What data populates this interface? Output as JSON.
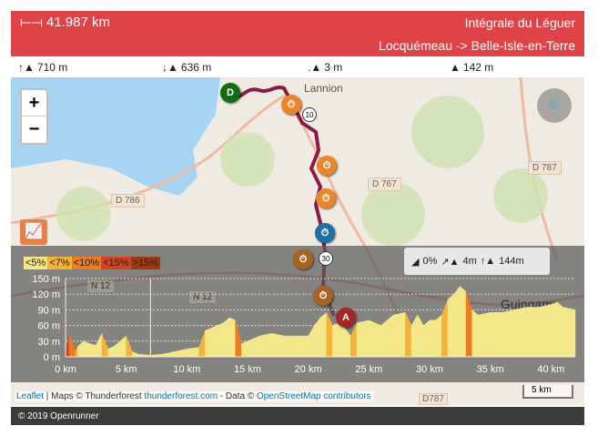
{
  "header": {
    "distance": "41.987 km",
    "title": "Intégrale du Léguer",
    "route": "Locquémeau -> Belle-Isle-en-Terre",
    "distance_icon": "ruler-icon"
  },
  "stats": {
    "ascent": "710 m",
    "descent": "636 m",
    "min_alt": "3 m",
    "max_alt": "142 m"
  },
  "map": {
    "zoom_in": "+",
    "zoom_out": "−",
    "roads": [
      "D 786",
      "D 767",
      "D 787",
      "N 12",
      "N 12",
      "D787"
    ],
    "town": "Lannion",
    "town2": "Guingamp",
    "markers": {
      "start": "D",
      "end": "A",
      "km10": "10",
      "km30": "30"
    },
    "attribution": {
      "leaflet": "Leaflet",
      "maps": " | Maps © Thunderforest ",
      "tf": "thunderforest.com",
      "data": " - Data © ",
      "osm": "OpenStreetMap contributors"
    },
    "scale": "5 km"
  },
  "elevation": {
    "legend": [
      {
        "label": "<5%",
        "color": "#f2e88a"
      },
      {
        "label": "<7%",
        "color": "#f3b23a"
      },
      {
        "label": "<10%",
        "color": "#ec7b22"
      },
      {
        "label": "<15%",
        "color": "#d9401e"
      },
      {
        "label": ">15%",
        "color": "#9c3a14"
      }
    ],
    "summary": {
      "slope": "0%",
      "gain": "4m",
      "alt": "144m"
    }
  },
  "chart_data": {
    "type": "area",
    "xlabel": "",
    "ylabel": "",
    "xlim": [
      0,
      42
    ],
    "ylim": [
      0,
      150
    ],
    "x_ticks": [
      "0 km",
      "5 km",
      "10 km",
      "15 km",
      "20 km",
      "25 km",
      "30 km",
      "35 km",
      "40 km"
    ],
    "y_ticks": [
      "0 m",
      "30 m",
      "60 m",
      "90 m",
      "120 m",
      "150 m"
    ],
    "grid": true,
    "x": [
      0,
      0.3,
      0.8,
      1,
      1.5,
      2,
      2.5,
      3,
      3.5,
      4,
      4.5,
      5,
      5.5,
      6,
      7,
      8,
      9,
      10,
      11,
      11.5,
      12,
      13,
      13.5,
      14,
      14.5,
      15,
      16,
      17,
      18,
      19,
      20,
      20.5,
      21,
      21.5,
      22,
      22.5,
      23,
      23.5,
      24,
      25,
      26,
      27,
      28,
      28.5,
      29,
      29.5,
      30,
      30.5,
      31,
      31.5,
      32,
      32.5,
      33,
      33.5,
      34,
      35,
      36,
      37,
      38,
      39,
      40,
      40.5,
      41,
      42
    ],
    "y": [
      5,
      45,
      10,
      20,
      30,
      25,
      22,
      45,
      15,
      20,
      30,
      40,
      10,
      5,
      3,
      5,
      10,
      15,
      18,
      50,
      55,
      65,
      75,
      70,
      25,
      30,
      40,
      45,
      40,
      40,
      40,
      60,
      75,
      85,
      60,
      65,
      55,
      40,
      65,
      70,
      60,
      80,
      85,
      60,
      80,
      60,
      70,
      70,
      80,
      110,
      120,
      135,
      125,
      90,
      80,
      85,
      85,
      90,
      95,
      95,
      100,
      105,
      95,
      90
    ]
  }
}
